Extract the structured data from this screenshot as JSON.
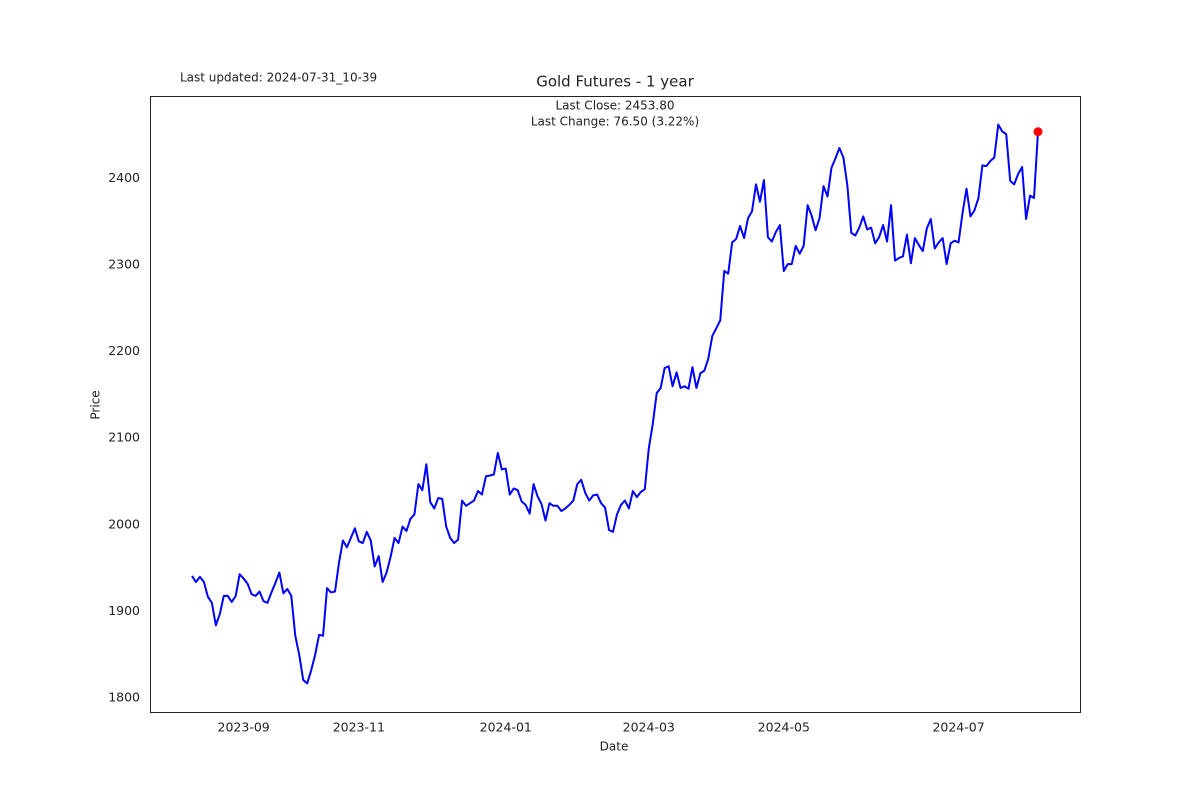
{
  "chart_data": {
    "type": "line",
    "title": "Gold Futures - 1 year",
    "last_updated": "Last updated: 2024-07-31_10-39",
    "annotations": [
      "Last Close: 2453.80",
      "Last Change: 76.50 (3.22%)"
    ],
    "xlabel": "Date",
    "ylabel": "Price",
    "color": "#0000ff",
    "last_marker_color": "#ff0000",
    "ylim": [
      1784,
      2495
    ],
    "yticks": [
      1800,
      1900,
      2000,
      2100,
      2200,
      2300,
      2400
    ],
    "grid": false,
    "categories": [
      null,
      null,
      null,
      null,
      null,
      null,
      null,
      null,
      null,
      null,
      null,
      null,
      null,
      "2023-09",
      null,
      null,
      null,
      null,
      null,
      null,
      null,
      null,
      null,
      null,
      null,
      null,
      null,
      null,
      null,
      null,
      null,
      null,
      null,
      null,
      null,
      null,
      null,
      null,
      null,
      null,
      null,
      null,
      "2023-11",
      null,
      null,
      null,
      null,
      null,
      null,
      null,
      null,
      null,
      null,
      null,
      null,
      null,
      null,
      null,
      null,
      null,
      null,
      null,
      null,
      null,
      null,
      null,
      null,
      null,
      null,
      null,
      null,
      null,
      null,
      null,
      null,
      null,
      null,
      null,
      null,
      "2024-01",
      null,
      null,
      null,
      null,
      null,
      null,
      null,
      null,
      null,
      null,
      null,
      null,
      null,
      null,
      null,
      null,
      null,
      null,
      null,
      null,
      null,
      null,
      null,
      null,
      null,
      null,
      null,
      null,
      null,
      null,
      null,
      null,
      null,
      null,
      null,
      "2024-03",
      null,
      null,
      null,
      null,
      null,
      null,
      null,
      null,
      null,
      null,
      null,
      null,
      null,
      null,
      null,
      null,
      null,
      null,
      null,
      null,
      null,
      null,
      null,
      null,
      null,
      null,
      null,
      null,
      null,
      null,
      null,
      null,
      null,
      "2024-05",
      null,
      null,
      null,
      null,
      null,
      null,
      null,
      null,
      null,
      null,
      null,
      null,
      null,
      null,
      null,
      null,
      null,
      null,
      null,
      null,
      null,
      null,
      null,
      null,
      null,
      null,
      null,
      null,
      null,
      null,
      null,
      null,
      null,
      null,
      null,
      null,
      null,
      null,
      null,
      null,
      null,
      null,
      null,
      "2024-07",
      null,
      null,
      null,
      null,
      null,
      null,
      null,
      null,
      null,
      null,
      null,
      null,
      null,
      null,
      null,
      null,
      null,
      null,
      null,
      null
    ],
    "values": [
      1941,
      1934,
      1940,
      1934,
      1917,
      1910,
      1884,
      1897,
      1918,
      1918,
      1911,
      1918,
      1943,
      1938,
      1932,
      1920,
      1918,
      1923,
      1912,
      1910,
      1922,
      1933,
      1945,
      1921,
      1926,
      1918,
      1872,
      1850,
      1821,
      1817,
      1832,
      1850,
      1873,
      1872,
      1927,
      1922,
      1923,
      1956,
      1982,
      1974,
      1985,
      1996,
      1981,
      1979,
      1992,
      1982,
      1952,
      1964,
      1934,
      1945,
      1963,
      1985,
      1979,
      1998,
      1993,
      2007,
      2012,
      2047,
      2040,
      2070,
      2026,
      2019,
      2031,
      2030,
      1998,
      1985,
      1979,
      1983,
      2028,
      2022,
      2025,
      2028,
      2039,
      2035,
      2056,
      2057,
      2058,
      2083,
      2064,
      2065,
      2035,
      2042,
      2040,
      2027,
      2023,
      2013,
      2047,
      2033,
      2024,
      2005,
      2025,
      2022,
      2022,
      2016,
      2019,
      2023,
      2028,
      2047,
      2052,
      2037,
      2028,
      2034,
      2035,
      2025,
      2020,
      1994,
      1992,
      2012,
      2023,
      2028,
      2019,
      2039,
      2032,
      2038,
      2041,
      2088,
      2116,
      2152,
      2158,
      2181,
      2183,
      2160,
      2176,
      2158,
      2160,
      2157,
      2182,
      2158,
      2175,
      2178,
      2192,
      2218,
      2227,
      2236,
      2293,
      2290,
      2326,
      2330,
      2345,
      2331,
      2354,
      2362,
      2393,
      2373,
      2398,
      2332,
      2327,
      2338,
      2346,
      2293,
      2301,
      2301,
      2322,
      2313,
      2322,
      2369,
      2357,
      2340,
      2354,
      2391,
      2379,
      2412,
      2423,
      2435,
      2424,
      2392,
      2337,
      2334,
      2343,
      2356,
      2341,
      2343,
      2325,
      2332,
      2346,
      2327,
      2369,
      2305,
      2308,
      2310,
      2335,
      2302,
      2331,
      2323,
      2316,
      2342,
      2353,
      2319,
      2326,
      2331,
      2301,
      2325,
      2328,
      2326,
      2360,
      2388,
      2356,
      2363,
      2377,
      2415,
      2414,
      2420,
      2424,
      2462,
      2454,
      2451,
      2397,
      2393,
      2405,
      2413,
      2353,
      2380,
      2377.3,
      2453.8
    ]
  }
}
